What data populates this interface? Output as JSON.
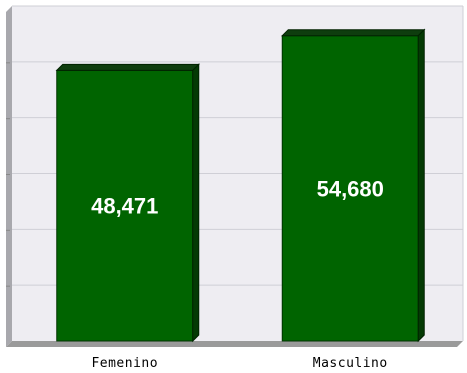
{
  "chart_data": {
    "type": "bar",
    "categories": [
      "Femenino",
      "Masculino"
    ],
    "values": [
      48471,
      54680
    ],
    "data_labels": [
      "48,471",
      "54,680"
    ],
    "title": "",
    "xlabel": "",
    "ylabel": "",
    "ylim": [
      0,
      60000
    ],
    "grid": true,
    "legend": "none",
    "colors": {
      "bar_front": "#006400",
      "bar_top": "#0e3d0e",
      "bar_side": "#043a04",
      "plot_background": "#eeedf2",
      "gridline": "#cfcfd6",
      "floor": "#9a9a9a",
      "wall": "#a8a8ad"
    }
  }
}
